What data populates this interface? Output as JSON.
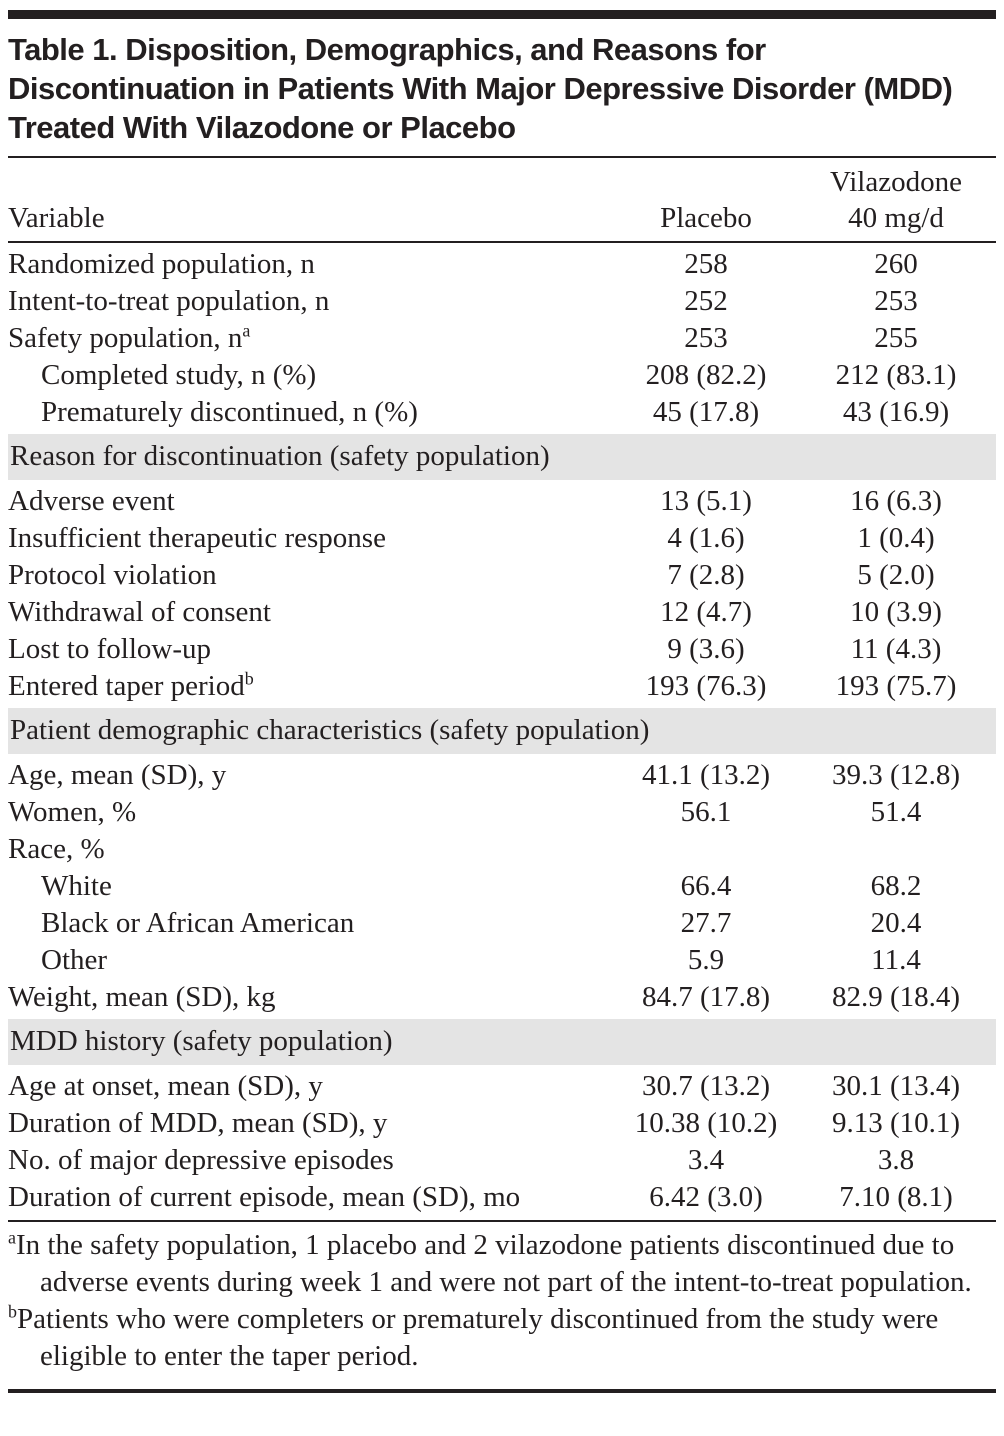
{
  "colors": {
    "ink": "#231f20",
    "section_band_gray": "#e4e4e4",
    "background": "#ffffff"
  },
  "table": {
    "title": "Table 1. Disposition, Demographics, and Reasons for Discontinuation in Patients With Major Depressive Disorder (MDD) Treated With Vilazodone or Placebo",
    "columns": {
      "variable": "Variable",
      "placebo": "Placebo",
      "vilazodone_line1": "Vilazodone",
      "vilazodone_line2": "40 mg/d"
    },
    "rows": [
      {
        "type": "data",
        "indent": false,
        "label": "Randomized population, n",
        "sup": "",
        "placebo": "258",
        "vilazodone": "260"
      },
      {
        "type": "data",
        "indent": false,
        "label": "Intent-to-treat population, n",
        "sup": "",
        "placebo": "252",
        "vilazodone": "253"
      },
      {
        "type": "data",
        "indent": false,
        "label": "Safety population, n",
        "sup": "a",
        "placebo": "253",
        "vilazodone": "255"
      },
      {
        "type": "data",
        "indent": true,
        "label": "Completed study, n (%)",
        "sup": "",
        "placebo": "208 (82.2)",
        "vilazodone": "212 (83.1)"
      },
      {
        "type": "data",
        "indent": true,
        "label": "Prematurely discontinued, n (%)",
        "sup": "",
        "placebo": "45 (17.8)",
        "vilazodone": "43 (16.9)"
      },
      {
        "type": "section",
        "label": "Reason for discontinuation (safety population)"
      },
      {
        "type": "data",
        "indent": false,
        "label": "Adverse event",
        "sup": "",
        "placebo": "13 (5.1)",
        "vilazodone": "16 (6.3)"
      },
      {
        "type": "data",
        "indent": false,
        "label": "Insufficient therapeutic response",
        "sup": "",
        "placebo": "4 (1.6)",
        "vilazodone": "1 (0.4)"
      },
      {
        "type": "data",
        "indent": false,
        "label": "Protocol violation",
        "sup": "",
        "placebo": "7 (2.8)",
        "vilazodone": "5 (2.0)"
      },
      {
        "type": "data",
        "indent": false,
        "label": "Withdrawal of consent",
        "sup": "",
        "placebo": "12 (4.7)",
        "vilazodone": "10 (3.9)"
      },
      {
        "type": "data",
        "indent": false,
        "label": "Lost to follow-up",
        "sup": "",
        "placebo": "9 (3.6)",
        "vilazodone": "11 (4.3)"
      },
      {
        "type": "data",
        "indent": false,
        "label": "Entered taper period",
        "sup": "b",
        "placebo": "193 (76.3)",
        "vilazodone": "193 (75.7)"
      },
      {
        "type": "section",
        "label": "Patient demographic characteristics (safety population)"
      },
      {
        "type": "data",
        "indent": false,
        "label": "Age, mean (SD), y",
        "sup": "",
        "placebo": "41.1 (13.2)",
        "vilazodone": "39.3 (12.8)"
      },
      {
        "type": "data",
        "indent": false,
        "label": "Women, %",
        "sup": "",
        "placebo": "56.1",
        "vilazodone": "51.4"
      },
      {
        "type": "data",
        "indent": false,
        "label": "Race, %",
        "sup": "",
        "placebo": "",
        "vilazodone": ""
      },
      {
        "type": "data",
        "indent": true,
        "label": "White",
        "sup": "",
        "placebo": "66.4",
        "vilazodone": "68.2"
      },
      {
        "type": "data",
        "indent": true,
        "label": "Black or African American",
        "sup": "",
        "placebo": "27.7",
        "vilazodone": "20.4"
      },
      {
        "type": "data",
        "indent": true,
        "label": "Other",
        "sup": "",
        "placebo": "5.9",
        "vilazodone": "11.4"
      },
      {
        "type": "data",
        "indent": false,
        "label": "Weight, mean (SD), kg",
        "sup": "",
        "placebo": "84.7 (17.8)",
        "vilazodone": "82.9 (18.4)"
      },
      {
        "type": "section",
        "label": "MDD history (safety population)"
      },
      {
        "type": "data",
        "indent": false,
        "label": "Age at onset, mean (SD), y",
        "sup": "",
        "placebo": "30.7 (13.2)",
        "vilazodone": "30.1 (13.4)"
      },
      {
        "type": "data",
        "indent": false,
        "label": "Duration of MDD, mean (SD), y",
        "sup": "",
        "placebo": "10.38 (10.2)",
        "vilazodone": "9.13 (10.1)"
      },
      {
        "type": "data",
        "indent": false,
        "label": "No. of major depressive episodes",
        "sup": "",
        "placebo": "3.4",
        "vilazodone": "3.8"
      },
      {
        "type": "data",
        "indent": false,
        "label": "Duration of current episode, mean (SD), mo",
        "sup": "",
        "placebo": "6.42 (3.0)",
        "vilazodone": "7.10 (8.1)"
      }
    ],
    "footnotes": [
      {
        "sup": "a",
        "text": "In the safety population, 1 placebo and 2 vilazodone patients discontinued due to adverse events during week 1 and were not part of the intent-to-treat population."
      },
      {
        "sup": "b",
        "text": "Patients who were completers or prematurely discontinued from the study were eligible to enter the taper period."
      }
    ]
  }
}
